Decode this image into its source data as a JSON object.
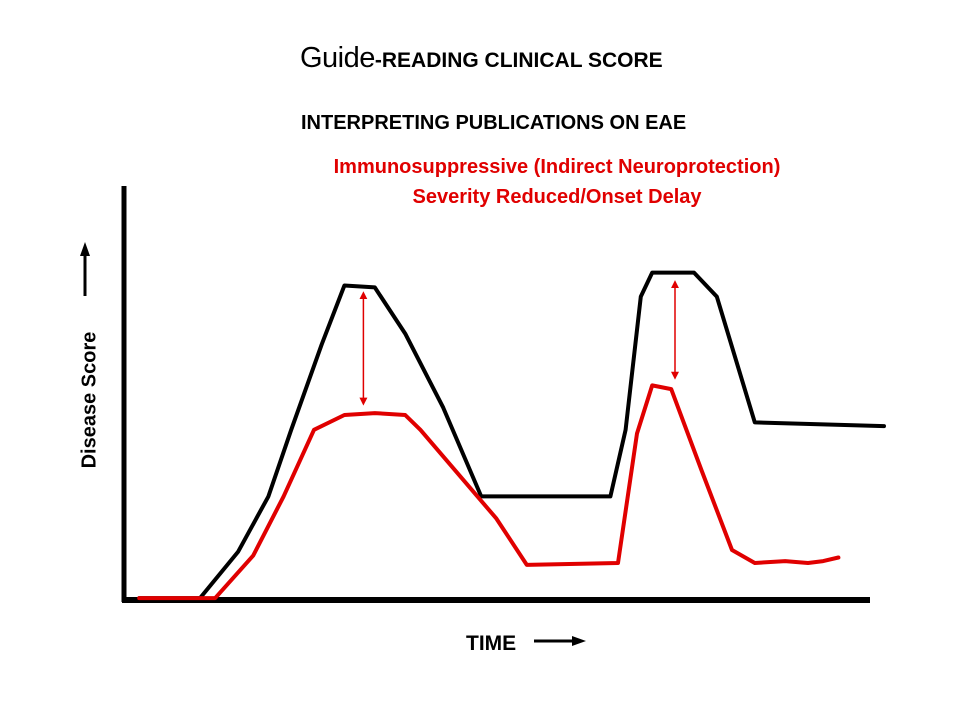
{
  "title": {
    "guide": "Guide",
    "rest": "-READING CLINICAL SCORE"
  },
  "subtitle": "INTERPRETING PUBLICATIONS ON EAE",
  "annotation": {
    "line1": "Immunosuppressive (Indirect Neuroprotection)",
    "line2": "Severity Reduced/Onset Delay",
    "color": "#e00000"
  },
  "colors": {
    "axis": "#000000",
    "control": "#000000",
    "treated": "#e00000"
  },
  "chart_data": {
    "type": "line",
    "xlabel": "TIME",
    "ylabel": "Disease Score",
    "xlim": [
      0,
      100
    ],
    "ylim": [
      0,
      100
    ],
    "grid": false,
    "legend": "none",
    "series": [
      {
        "color": "#000000",
        "points": [
          [
            2,
            0.5
          ],
          [
            10,
            0.5
          ],
          [
            15,
            13
          ],
          [
            19,
            28
          ],
          [
            22,
            46
          ],
          [
            26,
            69
          ],
          [
            29,
            85
          ],
          [
            33,
            84.5
          ],
          [
            37,
            72
          ],
          [
            42,
            52
          ],
          [
            47,
            28
          ],
          [
            64,
            28
          ],
          [
            66,
            46
          ],
          [
            68,
            82
          ],
          [
            69.5,
            88.5
          ],
          [
            75,
            88.5
          ],
          [
            78,
            82
          ],
          [
            83,
            48
          ],
          [
            100,
            47
          ]
        ]
      },
      {
        "color": "#e00000",
        "points": [
          [
            2,
            0.5
          ],
          [
            12,
            0.5
          ],
          [
            17,
            12
          ],
          [
            21,
            28
          ],
          [
            25,
            46
          ],
          [
            29,
            50
          ],
          [
            33,
            50.5
          ],
          [
            37,
            50
          ],
          [
            39,
            46
          ],
          [
            44,
            34
          ],
          [
            49,
            22
          ],
          [
            53,
            9.5
          ],
          [
            65,
            10
          ],
          [
            67.5,
            45
          ],
          [
            69.5,
            58
          ],
          [
            72,
            57
          ],
          [
            76,
            35
          ],
          [
            80,
            13.5
          ],
          [
            83,
            10
          ],
          [
            87,
            10.5
          ],
          [
            90,
            10
          ],
          [
            92,
            10.5
          ],
          [
            94,
            11.5
          ]
        ]
      }
    ],
    "arrows": [
      {
        "x": 31.5,
        "from": 84,
        "to": 52
      },
      {
        "x": 72.5,
        "from": 87,
        "to": 59
      }
    ],
    "axis_arrows": [
      "time-increasing",
      "score-increasing"
    ]
  }
}
